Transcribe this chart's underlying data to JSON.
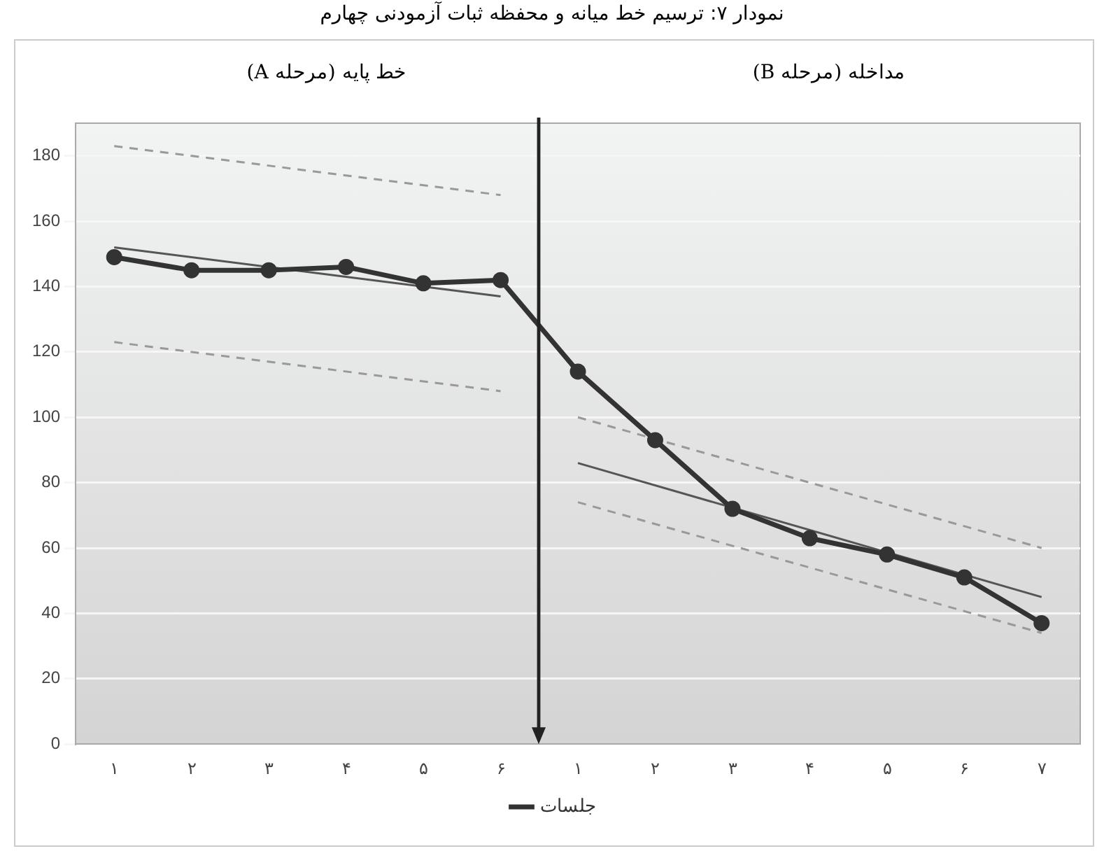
{
  "chart_data": {
    "type": "line",
    "title": "نمودار ۷: ترسیم خط میانه و محفظه ثبات آزمودنی چهارم",
    "annotations": [
      "خط پایه (مرحله A)",
      "مداخله (مرحله B)"
    ],
    "categories": [
      "۱",
      "۲",
      "۳",
      "۴",
      "۵",
      "۶",
      "۱",
      "۲",
      "۳",
      "۴",
      "۵",
      "۶",
      "۷"
    ],
    "series": [
      {
        "name": "جلسات",
        "color": "#333333",
        "marker": "circle",
        "values": [
          149,
          145,
          145,
          146,
          141,
          142,
          114,
          93,
          72,
          63,
          58,
          51,
          37
        ]
      },
      {
        "color": "#555555",
        "marker": "none",
        "values": [
          152,
          null,
          null,
          null,
          null,
          137,
          null,
          null,
          null,
          null,
          null,
          null,
          null
        ]
      },
      {
        "color": "#999999",
        "marker": "none",
        "line_style": "dashed",
        "values": [
          183,
          null,
          null,
          null,
          null,
          168,
          null,
          null,
          null,
          null,
          null,
          null,
          null
        ]
      },
      {
        "color": "#999999",
        "marker": "none",
        "line_style": "dashed",
        "values": [
          123,
          null,
          null,
          null,
          null,
          108,
          null,
          null,
          null,
          null,
          null,
          null,
          null
        ]
      },
      {
        "color": "#555555",
        "marker": "none",
        "values": [
          null,
          null,
          null,
          null,
          null,
          null,
          86,
          null,
          null,
          null,
          null,
          null,
          45
        ]
      },
      {
        "color": "#999999",
        "marker": "none",
        "line_style": "dashed",
        "values": [
          null,
          null,
          null,
          null,
          null,
          null,
          100,
          null,
          null,
          null,
          null,
          null,
          60
        ]
      },
      {
        "color": "#999999",
        "marker": "none",
        "line_style": "dashed",
        "values": [
          null,
          null,
          null,
          null,
          null,
          null,
          74,
          null,
          null,
          null,
          null,
          null,
          34
        ]
      }
    ],
    "ylim": [
      0,
      190
    ],
    "yticks": [
      0,
      20,
      40,
      60,
      80,
      100,
      120,
      140,
      160,
      180
    ],
    "grid": "y",
    "legend": "bottom"
  }
}
